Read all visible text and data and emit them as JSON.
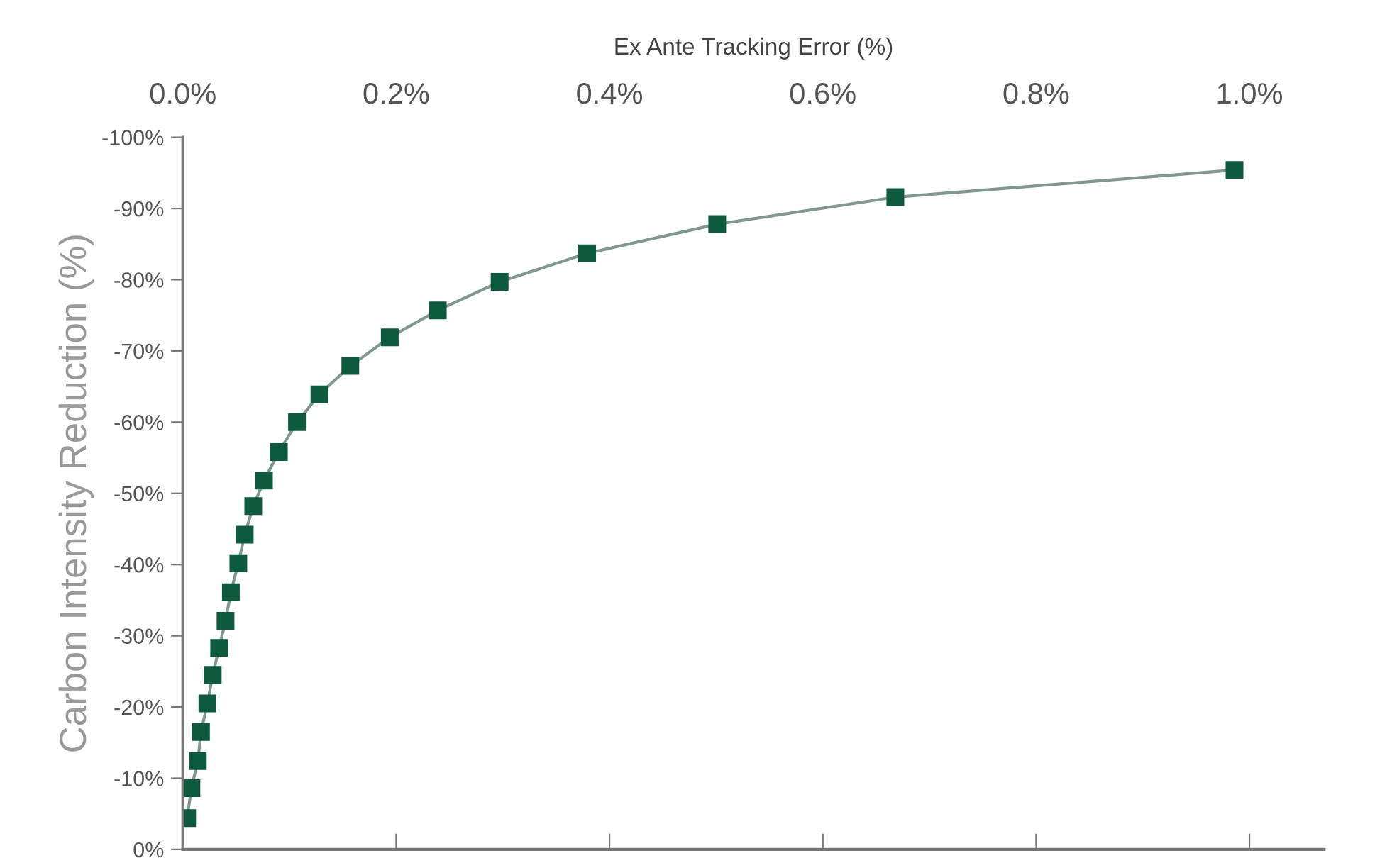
{
  "chart_data": {
    "type": "line",
    "xlabel": "Ex Ante Tracking Error (%)",
    "ylabel": "Carbon Intensity Reduction (%)",
    "x": [
      0.004,
      0.008,
      0.014,
      0.017,
      0.023,
      0.028,
      0.034,
      0.04,
      0.045,
      0.052,
      0.058,
      0.066,
      0.076,
      0.09,
      0.107,
      0.128,
      0.157,
      0.194,
      0.239,
      0.297,
      0.379,
      0.501,
      0.668,
      0.986
    ],
    "series": [
      {
        "color": "#0e5a3e",
        "values": [
          -4.4,
          -8.6,
          -12.4,
          -16.5,
          -20.5,
          -24.5,
          -28.3,
          -32.1,
          -36.1,
          -40.2,
          -44.2,
          -48.2,
          -51.8,
          -55.8,
          -60.0,
          -63.9,
          -67.9,
          -71.9,
          -75.7,
          -79.7,
          -83.7,
          -87.8,
          -91.6,
          -95.4
        ]
      }
    ],
    "marker": "square",
    "line_style": "solid",
    "grid": false,
    "legend": false,
    "xlim": [
      0,
      1.07
    ],
    "xticks": [
      {
        "value": 0,
        "label": "0.0%"
      },
      {
        "value": 0.2,
        "label": "0.2%"
      },
      {
        "value": 0.4,
        "label": "0.4%"
      },
      {
        "value": 0.6,
        "label": "0.6%"
      },
      {
        "value": 0.8,
        "label": "0.8%"
      },
      {
        "value": 1.0,
        "label": "1.0%"
      }
    ],
    "ylim": [
      0,
      -100
    ],
    "yticks": [
      {
        "value": 0,
        "label": "0%"
      },
      {
        "value": -10,
        "label": "-10%"
      },
      {
        "value": -20,
        "label": "-20%"
      },
      {
        "value": -30,
        "label": "-30%"
      },
      {
        "value": -40,
        "label": "-40%"
      },
      {
        "value": -50,
        "label": "-50%"
      },
      {
        "value": -60,
        "label": "-60%"
      },
      {
        "value": -70,
        "label": "-70%"
      },
      {
        "value": -80,
        "label": "-80%"
      },
      {
        "value": -90,
        "label": "-90%"
      },
      {
        "value": -100,
        "label": "-100%"
      }
    ]
  }
}
